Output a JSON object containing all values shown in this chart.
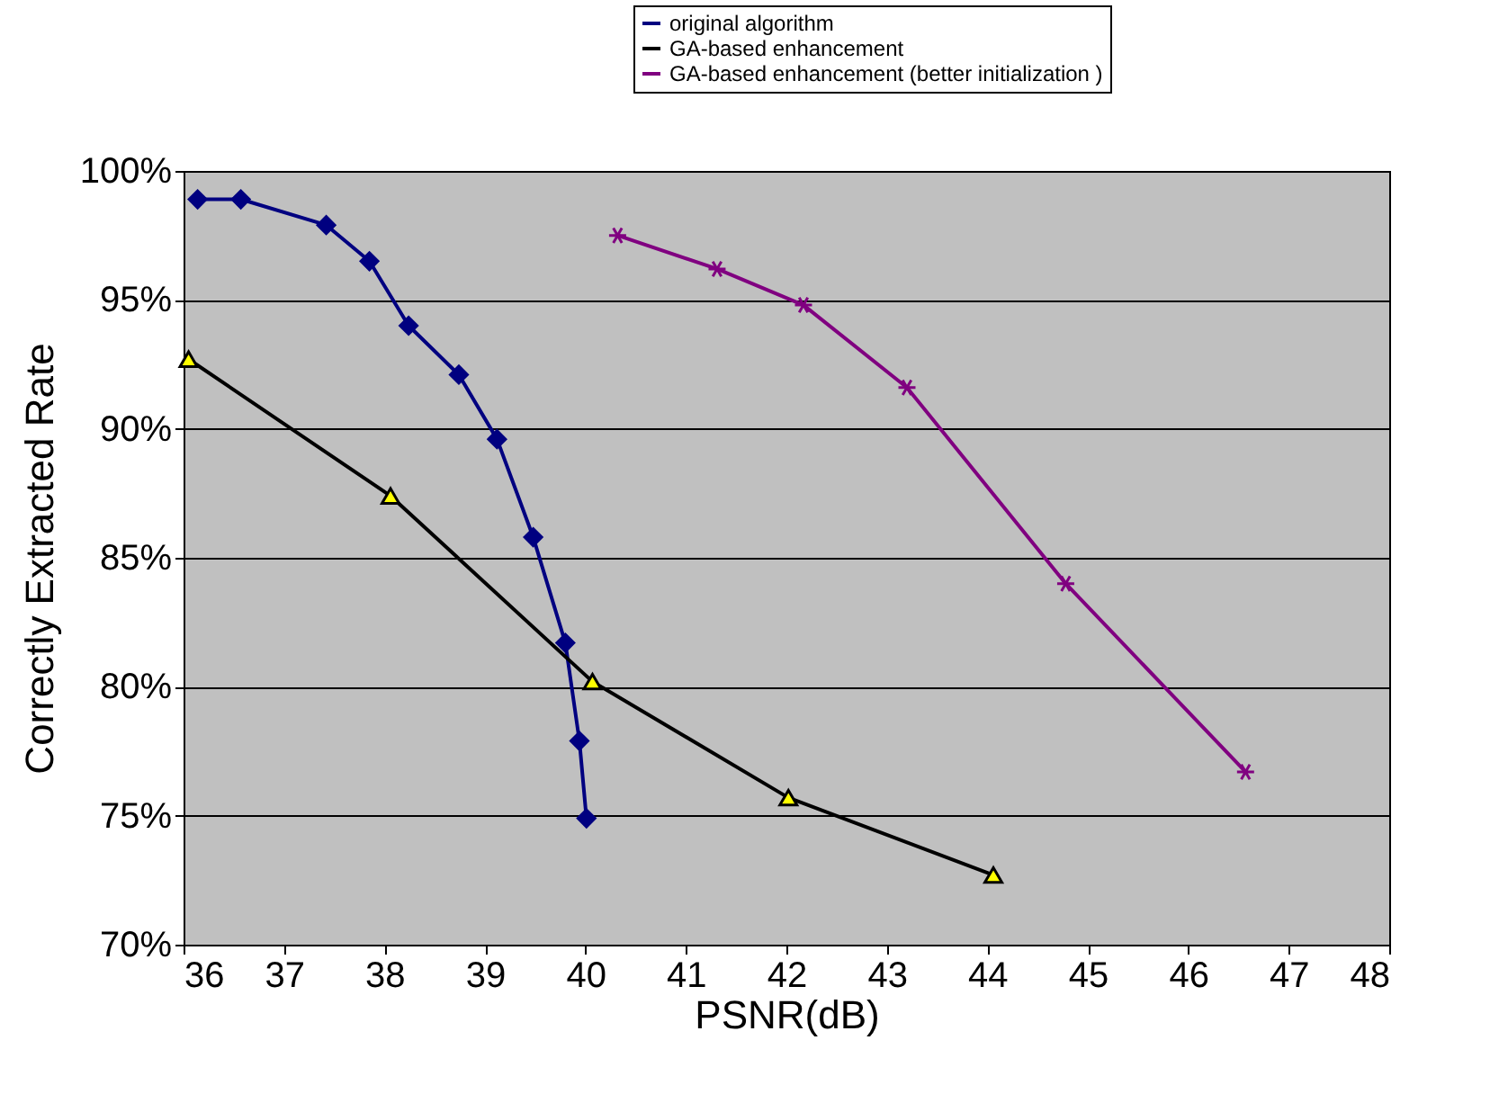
{
  "chart_data": {
    "type": "line",
    "xlabel": "PSNR(dB)",
    "ylabel": "Correctly Extracted Rate",
    "xlim": [
      36,
      48
    ],
    "xticks": [
      36,
      37,
      38,
      39,
      40,
      41,
      42,
      43,
      44,
      45,
      46,
      47,
      48
    ],
    "ylim": [
      70,
      100
    ],
    "yticks": [
      {
        "value": 70,
        "label": "70%"
      },
      {
        "value": 75,
        "label": "75%"
      },
      {
        "value": 80,
        "label": "80%"
      },
      {
        "value": 85,
        "label": "85%"
      },
      {
        "value": 90,
        "label": "90%"
      },
      {
        "value": 95,
        "label": "95%"
      },
      {
        "value": 100,
        "label": "100%"
      }
    ],
    "grid": "y",
    "legend": "top right",
    "line_style": "solid",
    "series": [
      {
        "name": "original algorithm",
        "color": "#000080",
        "marker": "diamond",
        "x": [
          36.14,
          36.57,
          37.42,
          37.85,
          38.24,
          38.74,
          39.12,
          39.48,
          39.8,
          39.94,
          40.01
        ],
        "values": [
          98.9,
          98.9,
          97.9,
          96.5,
          94.0,
          92.1,
          89.6,
          85.8,
          81.7,
          77.9,
          74.9
        ]
      },
      {
        "name": "GA-based enhancement",
        "color": "#000000",
        "colors": [
          "#ffff00",
          "#ffff00",
          "#ffff00",
          "#ffff00",
          "#ffff00"
        ],
        "marker": "triangle",
        "x": [
          36.05,
          38.06,
          40.07,
          42.02,
          44.06
        ],
        "values": [
          92.7,
          87.4,
          80.2,
          75.7,
          72.7
        ]
      },
      {
        "name": "GA-based enhancement (better initialization )",
        "color": "#800080",
        "marker": "cross",
        "x": [
          40.32,
          41.31,
          42.17,
          43.2,
          44.78,
          46.57
        ],
        "values": [
          97.5,
          96.2,
          94.8,
          91.6,
          84.0,
          76.7
        ]
      }
    ]
  }
}
